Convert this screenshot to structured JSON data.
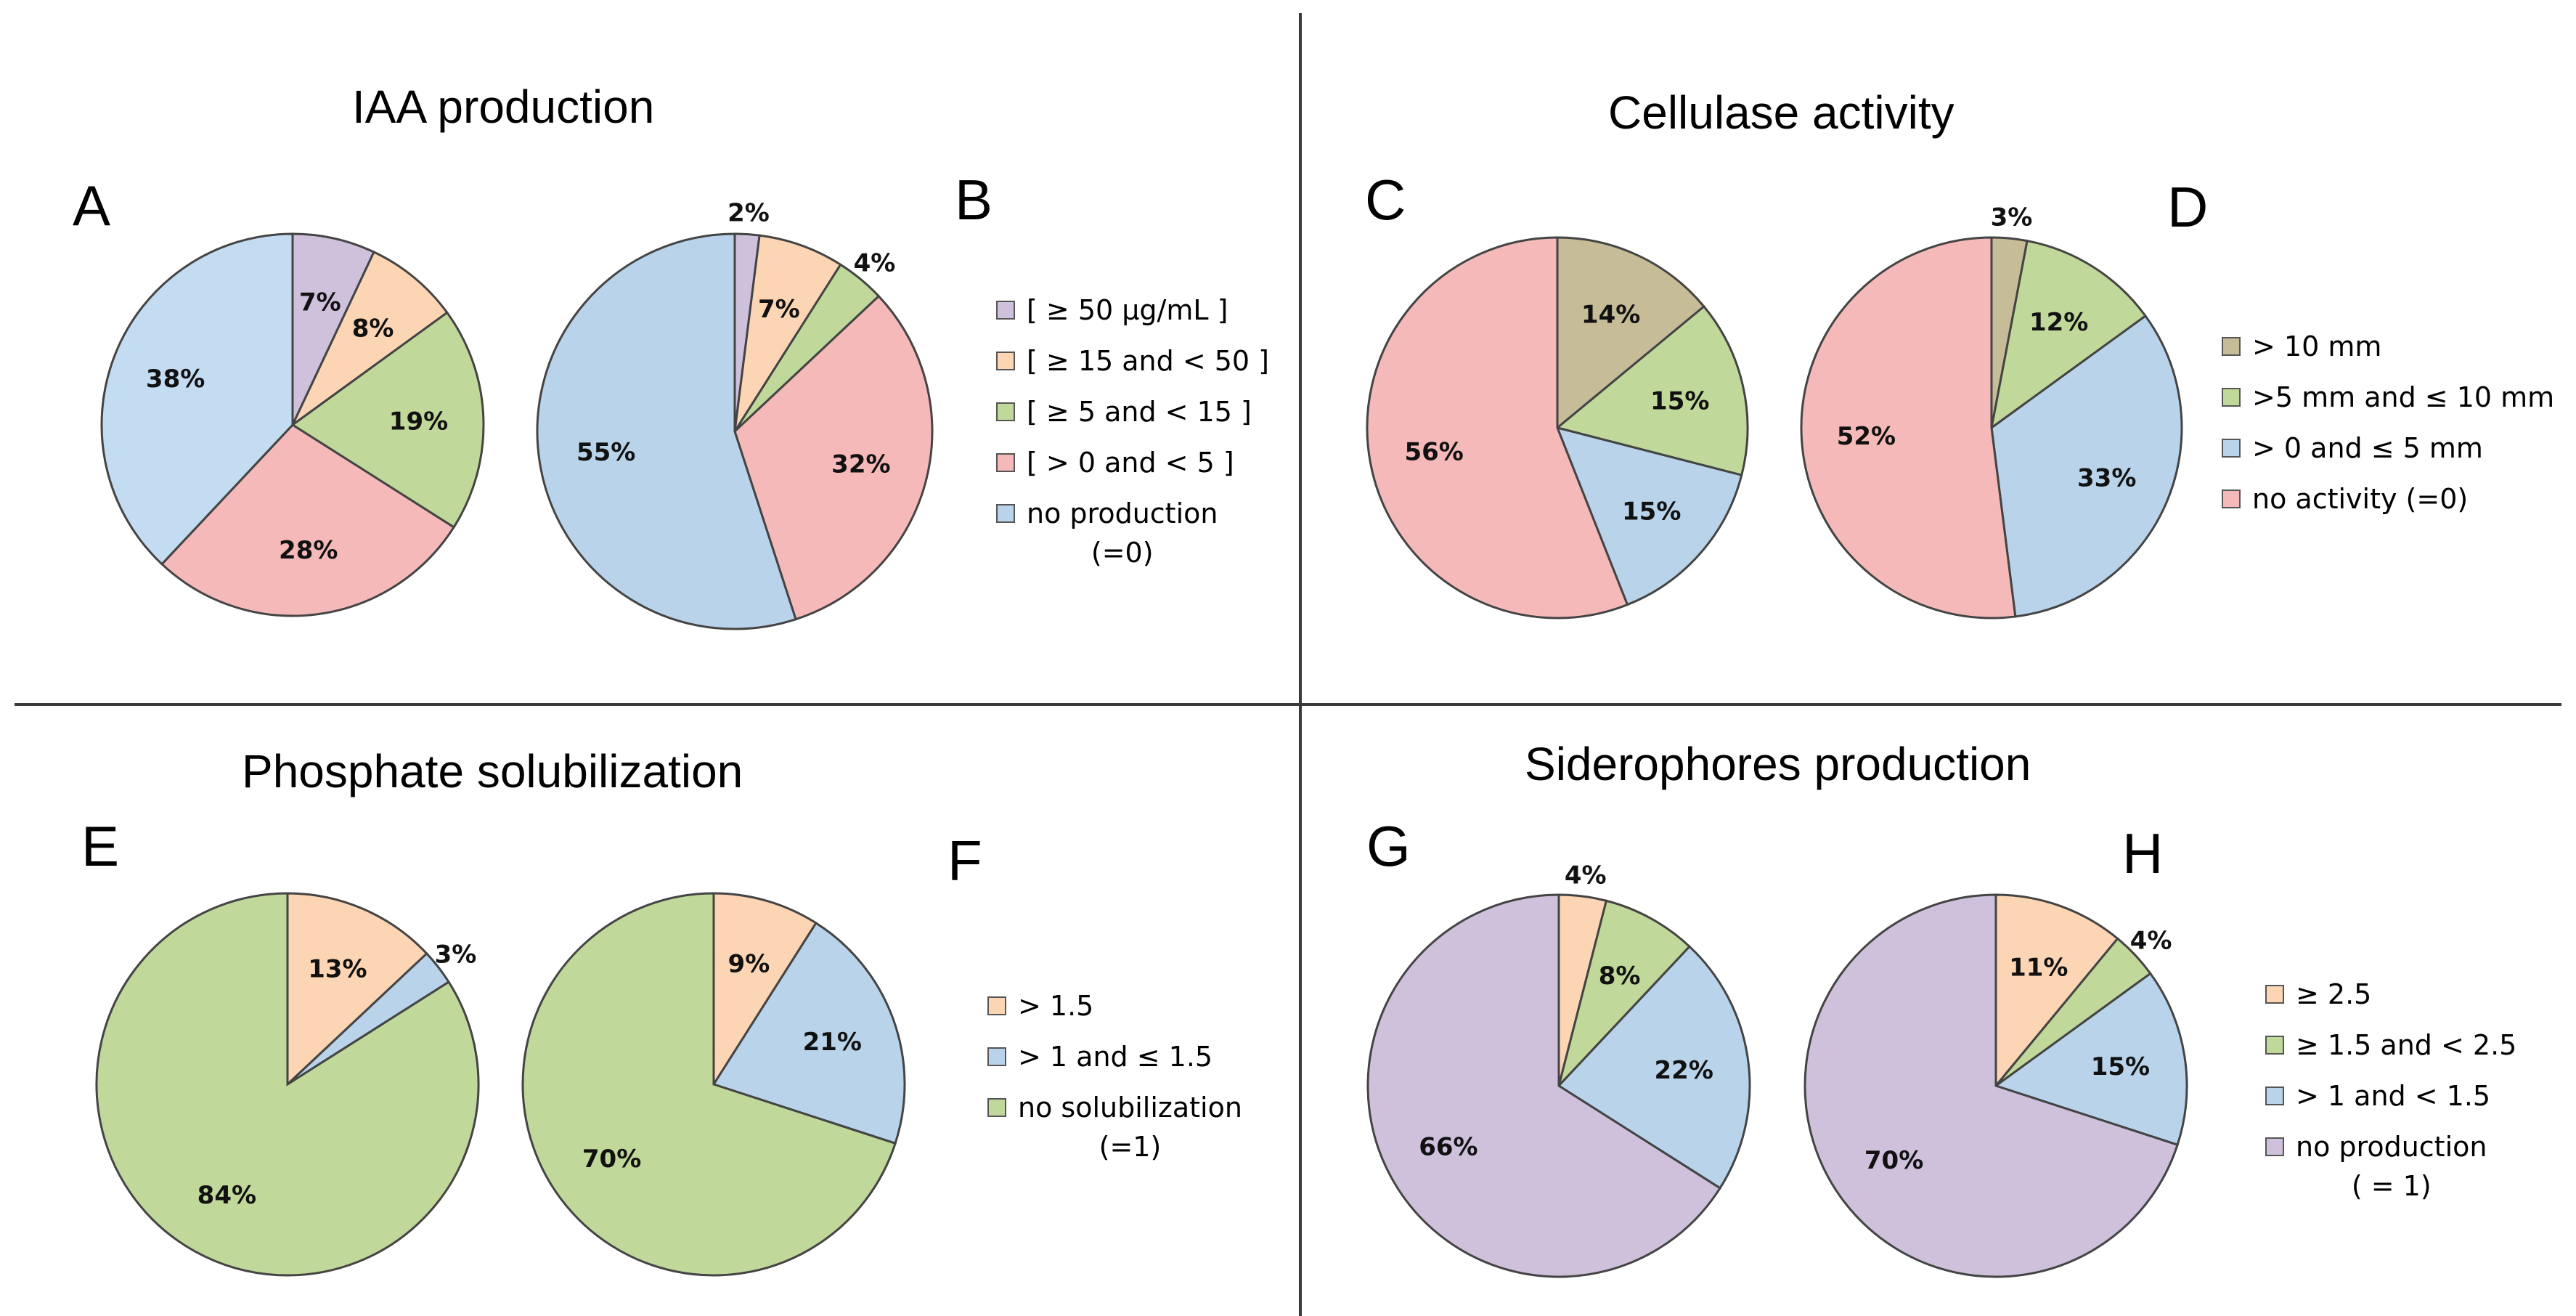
{
  "colors": {
    "purple": "#cfc1dc",
    "orange": "#fcd5b5",
    "green": "#c0d99a",
    "pink": "#f5b9b9",
    "blue": "#b9d3ea",
    "lightblue": "#c4dcf2",
    "tan": "#c6bd98",
    "stroke": "#444444",
    "divider": "#3a3a3a"
  },
  "panels": {
    "iaa": {
      "title": "IAA production",
      "letters": [
        "A",
        "B"
      ],
      "legend": [
        {
          "label": "[ ≥ 50 µg/mL ]",
          "sub": "",
          "color": "#cfc1dc"
        },
        {
          "label": "[ ≥ 15 and < 50 ]",
          "sub": "",
          "color": "#fcd5b5"
        },
        {
          "label": "[ ≥ 5 and < 15 ]",
          "sub": "",
          "color": "#c0d99a"
        },
        {
          "label": "[ > 0 and < 5 ]",
          "sub": "",
          "color": "#f5b9b9"
        },
        {
          "label": "no production",
          "sub": "(=0)",
          "color": "#b9d3ea"
        }
      ]
    },
    "cellulase": {
      "title": "Cellulase activity",
      "letters": [
        "C",
        "D"
      ],
      "legend": [
        {
          "label": "> 10 mm",
          "sub": "",
          "color": "#c6bd98"
        },
        {
          "label": ">5 mm and ≤ 10 mm",
          "sub": "",
          "color": "#c0d99a"
        },
        {
          "label": "> 0 and ≤ 5 mm",
          "sub": "",
          "color": "#b9d3ea"
        },
        {
          "label": "no activity (=0)",
          "sub": "",
          "color": "#f5b9b9"
        }
      ]
    },
    "phosphate": {
      "title": "Phosphate solubilization",
      "letters": [
        "E",
        "F"
      ],
      "legend": [
        {
          "label": "> 1.5",
          "sub": "",
          "color": "#fcd5b5"
        },
        {
          "label": "> 1 and ≤ 1.5",
          "sub": "",
          "color": "#b9d3ea"
        },
        {
          "label": "no solubilization",
          "sub": "(=1)",
          "color": "#c0d99a"
        }
      ]
    },
    "siderophores": {
      "title": "Siderophores production",
      "letters": [
        "G",
        "H"
      ],
      "legend": [
        {
          "label": "≥ 2.5",
          "sub": "",
          "color": "#fcd5b5"
        },
        {
          "label": "≥ 1.5 and < 2.5",
          "sub": "",
          "color": "#c0d99a"
        },
        {
          "label": "> 1 and < 1.5",
          "sub": "",
          "color": "#b9d3ea"
        },
        {
          "label": "no production",
          "sub": "( = 1)",
          "color": "#cfc1dc"
        }
      ]
    }
  },
  "chart_data": [
    {
      "type": "pie",
      "panel": "A",
      "title": "IAA production",
      "slices": [
        {
          "category": "[ ≥ 50 µg/mL ]",
          "value": 7,
          "label": "7%",
          "color": "#cfc1dc"
        },
        {
          "category": "[ ≥ 15 and < 50 ]",
          "value": 8,
          "label": "8%",
          "color": "#fcd5b5"
        },
        {
          "category": "[ ≥ 5 and < 15 ]",
          "value": 19,
          "label": "19%",
          "color": "#c0d99a"
        },
        {
          "category": "[ > 0 and < 5 ]",
          "value": 28,
          "label": "28%",
          "color": "#f5b9b9"
        },
        {
          "category": "no production (=0)",
          "value": 38,
          "label": "38%",
          "color": "#c4dcf2"
        }
      ]
    },
    {
      "type": "pie",
      "panel": "B",
      "title": "IAA production",
      "slices": [
        {
          "category": "[ ≥ 50 µg/mL ]",
          "value": 2,
          "label": "2%",
          "color": "#cfc1dc"
        },
        {
          "category": "[ ≥ 15 and < 50 ]",
          "value": 7,
          "label": "7%",
          "color": "#fcd5b5"
        },
        {
          "category": "[ ≥ 5 and < 15 ]",
          "value": 4,
          "label": "4%",
          "color": "#c0d99a"
        },
        {
          "category": "[ > 0 and < 5 ]",
          "value": 32,
          "label": "32%",
          "color": "#f5b9b9"
        },
        {
          "category": "no production (=0)",
          "value": 55,
          "label": "55%",
          "color": "#b9d3ea"
        }
      ]
    },
    {
      "type": "pie",
      "panel": "C",
      "title": "Cellulase activity",
      "slices": [
        {
          "category": "> 10 mm",
          "value": 14,
          "label": "14%",
          "color": "#c6bd98"
        },
        {
          "category": ">5 mm and ≤ 10 mm",
          "value": 15,
          "label": "15%",
          "color": "#c0d99a"
        },
        {
          "category": "> 0 and ≤ 5 mm",
          "value": 15,
          "label": "15%",
          "color": "#b9d3ea"
        },
        {
          "category": "no activity (=0)",
          "value": 56,
          "label": "56%",
          "color": "#f5b9b9"
        }
      ]
    },
    {
      "type": "pie",
      "panel": "D",
      "title": "Cellulase activity",
      "slices": [
        {
          "category": "> 10 mm",
          "value": 3,
          "label": "3%",
          "color": "#c6bd98"
        },
        {
          "category": ">5 mm and ≤ 10 mm",
          "value": 12,
          "label": "12%",
          "color": "#c0d99a"
        },
        {
          "category": "> 0 and ≤ 5 mm",
          "value": 33,
          "label": "33%",
          "color": "#b9d3ea"
        },
        {
          "category": "no activity (=0)",
          "value": 52,
          "label": "52%",
          "color": "#f5b9b9"
        }
      ]
    },
    {
      "type": "pie",
      "panel": "E",
      "title": "Phosphate solubilization",
      "slices": [
        {
          "category": "> 1.5",
          "value": 13,
          "label": "13%",
          "color": "#fcd5b5"
        },
        {
          "category": "> 1 and ≤ 1.5",
          "value": 3,
          "label": "3%",
          "color": "#b9d3ea"
        },
        {
          "category": "no solubilization (=1)",
          "value": 84,
          "label": "84%",
          "color": "#c0d99a"
        }
      ]
    },
    {
      "type": "pie",
      "panel": "F",
      "title": "Phosphate solubilization",
      "slices": [
        {
          "category": "> 1.5",
          "value": 9,
          "label": "9%",
          "color": "#fcd5b5"
        },
        {
          "category": "> 1 and ≤ 1.5",
          "value": 21,
          "label": "21%",
          "color": "#b9d3ea"
        },
        {
          "category": "no solubilization (=1)",
          "value": 70,
          "label": "70%",
          "color": "#c0d99a"
        }
      ]
    },
    {
      "type": "pie",
      "panel": "G",
      "title": "Siderophores production",
      "slices": [
        {
          "category": "≥ 2.5",
          "value": 4,
          "label": "4%",
          "color": "#fcd5b5"
        },
        {
          "category": "≥ 1.5 and < 2.5",
          "value": 8,
          "label": "8%",
          "color": "#c0d99a"
        },
        {
          "category": "> 1 and < 1.5",
          "value": 22,
          "label": "22%",
          "color": "#b9d3ea"
        },
        {
          "category": "no production ( = 1)",
          "value": 66,
          "label": "66%",
          "color": "#cfc1dc"
        }
      ]
    },
    {
      "type": "pie",
      "panel": "H",
      "title": "Siderophores production",
      "slices": [
        {
          "category": "≥ 2.5",
          "value": 11,
          "label": "11%",
          "color": "#fcd5b5"
        },
        {
          "category": "≥ 1.5 and < 2.5",
          "value": 4,
          "label": "4%",
          "color": "#c0d99a"
        },
        {
          "category": "> 1 and < 1.5",
          "value": 15,
          "label": "15%",
          "color": "#b9d3ea"
        },
        {
          "category": "no production ( = 1)",
          "value": 70,
          "label": "70%",
          "color": "#cfc1dc"
        }
      ]
    }
  ]
}
